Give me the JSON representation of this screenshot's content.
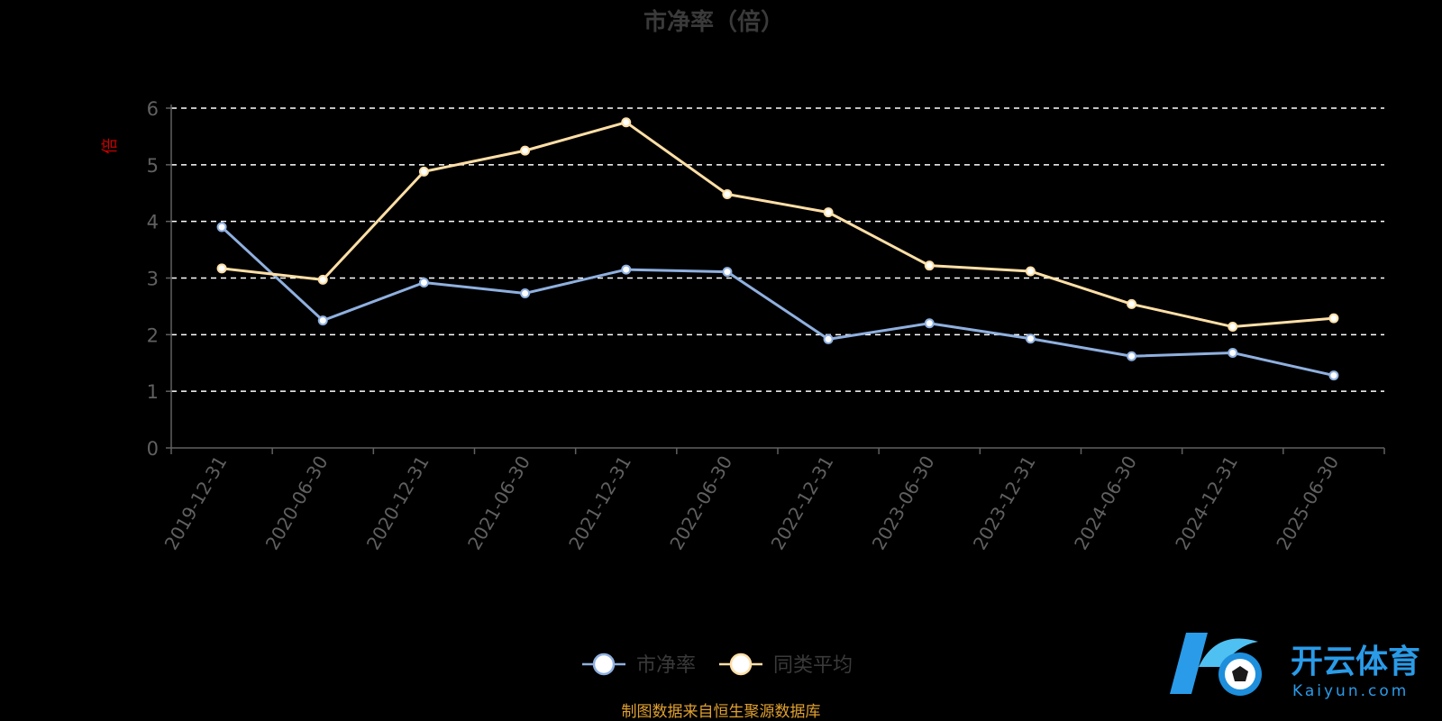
{
  "chart_data": {
    "type": "line",
    "title": "市净率（倍）",
    "ylabel": "倍",
    "xlabel": "",
    "categories": [
      "2019-12-31",
      "2020-06-30",
      "2020-12-31",
      "2021-06-30",
      "2021-12-31",
      "2022-06-30",
      "2022-12-31",
      "2023-06-30",
      "2023-12-31",
      "2024-06-30",
      "2024-12-31",
      "2025-06-30"
    ],
    "series": [
      {
        "name": "市净率",
        "color": "#8fb0df",
        "values": [
          3.9,
          2.25,
          2.92,
          2.73,
          3.15,
          3.11,
          1.92,
          2.2,
          1.93,
          1.62,
          1.68,
          1.28
        ]
      },
      {
        "name": "同类平均",
        "color": "#ffdfa6",
        "values": [
          3.17,
          2.97,
          4.88,
          5.25,
          5.75,
          4.48,
          4.16,
          3.22,
          3.12,
          2.54,
          2.14,
          2.29
        ]
      }
    ],
    "ylim": [
      0,
      6
    ],
    "yticks": [
      0,
      1,
      2,
      3,
      4,
      5,
      6
    ],
    "grid": true,
    "legend_position": "bottom-center"
  },
  "source_note": "制图数据来自恒生聚源数据库",
  "logo": {
    "name_cn": "开云体育",
    "name_en": "Kaiyun.com"
  },
  "colors": {
    "background": "#000000",
    "title": "#3a3a3a",
    "axis": "#606060",
    "grid": "#ffffff",
    "ylabel": "#cc0000",
    "source": "#e0a030",
    "logo": "#2a9be8"
  }
}
